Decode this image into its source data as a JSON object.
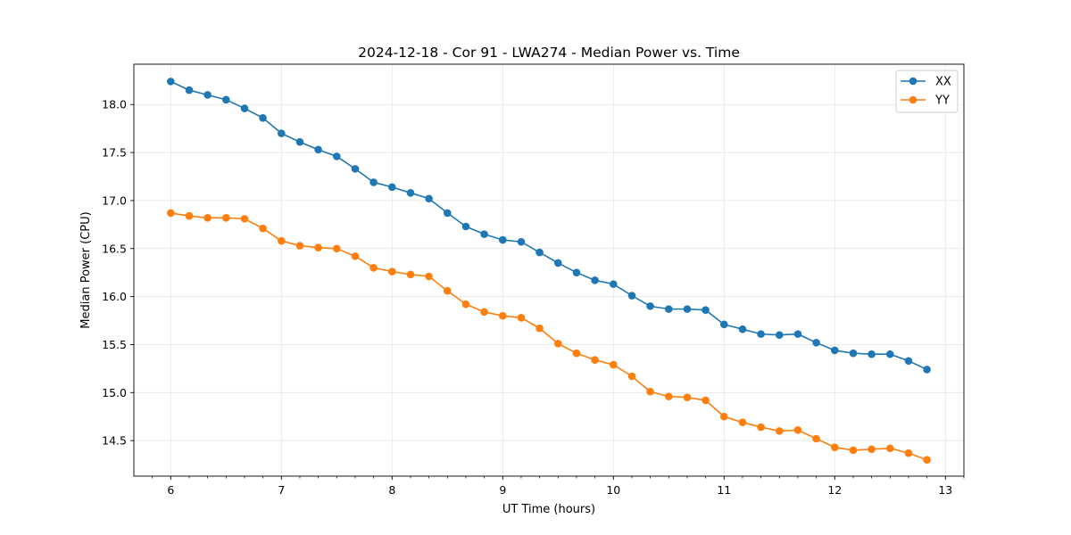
{
  "chart_data": {
    "type": "line",
    "title": "2024-12-18 - Cor 91 - LWA274 - Median Power vs. Time",
    "xlabel": "UT Time (hours)",
    "ylabel": "Median Power (CPU)",
    "xlim": [
      5.667,
      13.167
    ],
    "ylim": [
      14.13,
      18.42
    ],
    "xticks": [
      6,
      7,
      8,
      9,
      10,
      11,
      12,
      13
    ],
    "xtick_labels": [
      "6",
      "7",
      "8",
      "9",
      "10",
      "11",
      "12",
      "13"
    ],
    "yticks": [
      14.5,
      15.0,
      15.5,
      16.0,
      16.5,
      17.0,
      17.5,
      18.0
    ],
    "ytick_labels": [
      "14.5",
      "15.0",
      "15.5",
      "16.0",
      "16.5",
      "17.0",
      "17.5",
      "18.0"
    ],
    "grid": true,
    "legend_position": "top-right",
    "x": [
      6.0,
      6.167,
      6.333,
      6.5,
      6.667,
      6.833,
      7.0,
      7.167,
      7.333,
      7.5,
      7.667,
      7.833,
      8.0,
      8.167,
      8.333,
      8.5,
      8.667,
      8.833,
      9.0,
      9.167,
      9.333,
      9.5,
      9.667,
      9.833,
      10.0,
      10.167,
      10.333,
      10.5,
      10.667,
      10.833,
      11.0,
      11.167,
      11.333,
      11.5,
      11.667,
      11.833,
      12.0,
      12.167,
      12.333,
      12.5,
      12.667,
      12.833
    ],
    "series": [
      {
        "name": "XX",
        "color": "#1f77b4",
        "values": [
          18.24,
          18.15,
          18.1,
          18.05,
          17.96,
          17.86,
          17.7,
          17.61,
          17.53,
          17.46,
          17.33,
          17.19,
          17.14,
          17.08,
          17.02,
          16.87,
          16.73,
          16.65,
          16.59,
          16.57,
          16.46,
          16.35,
          16.25,
          16.17,
          16.13,
          16.01,
          15.9,
          15.87,
          15.87,
          15.86,
          15.71,
          15.66,
          15.61,
          15.6,
          15.61,
          15.52,
          15.44,
          15.41,
          15.4,
          15.4,
          15.33,
          15.24
        ]
      },
      {
        "name": "YY",
        "color": "#ff7f0e",
        "values": [
          16.87,
          16.84,
          16.82,
          16.82,
          16.81,
          16.71,
          16.58,
          16.53,
          16.51,
          16.5,
          16.42,
          16.3,
          16.26,
          16.23,
          16.21,
          16.06,
          15.92,
          15.84,
          15.8,
          15.78,
          15.67,
          15.51,
          15.41,
          15.34,
          15.29,
          15.17,
          15.01,
          14.96,
          14.95,
          14.92,
          14.75,
          14.69,
          14.64,
          14.6,
          14.61,
          14.52,
          14.43,
          14.4,
          14.41,
          14.42,
          14.37,
          14.3
        ]
      }
    ]
  }
}
